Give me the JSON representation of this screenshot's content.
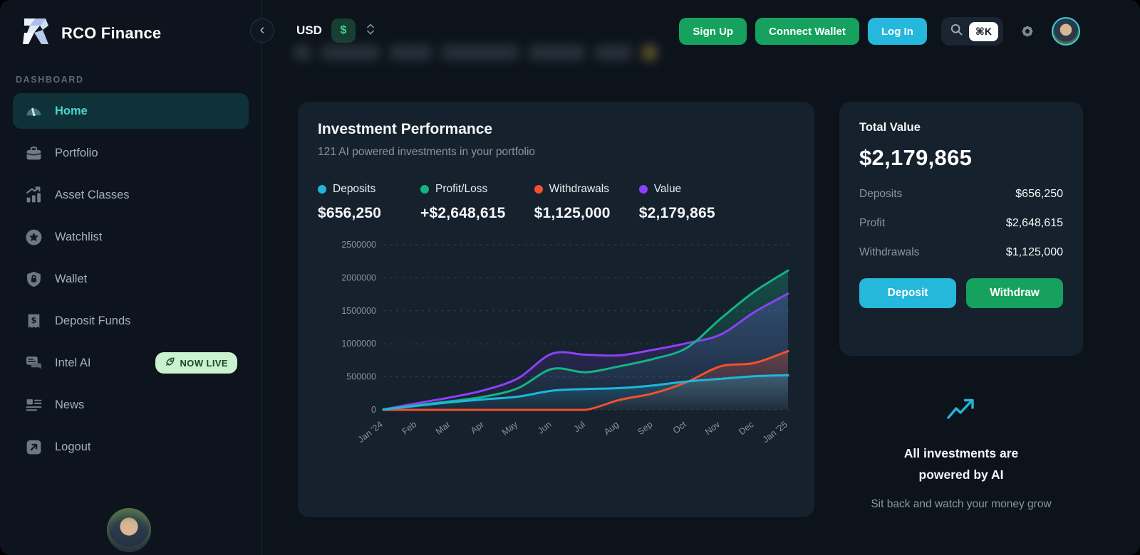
{
  "brand": {
    "name": "RCO Finance"
  },
  "sidebar": {
    "section_label": "DASHBOARD",
    "items": [
      {
        "label": "Home"
      },
      {
        "label": "Portfolio"
      },
      {
        "label": "Asset Classes"
      },
      {
        "label": "Watchlist"
      },
      {
        "label": "Wallet"
      },
      {
        "label": "Deposit Funds"
      },
      {
        "label": "Intel AI",
        "badge": "NOW LIVE"
      },
      {
        "label": "News"
      },
      {
        "label": "Logout"
      }
    ]
  },
  "topbar": {
    "currency": {
      "code": "USD",
      "symbol": "$"
    },
    "sign_up": "Sign Up",
    "connect_wallet": "Connect Wallet",
    "log_in": "Log In",
    "search_shortcut": "⌘K"
  },
  "performance_card": {
    "title": "Investment Performance",
    "subtitle": "121 AI powered investments in your portfolio",
    "legend": [
      {
        "label": "Deposits",
        "value": "$656,250",
        "color": "#1fb6dc"
      },
      {
        "label": "Profit/Loss",
        "value": "+$2,648,615",
        "color": "#15b382"
      },
      {
        "label": "Withdrawals",
        "value": "$1,125,000",
        "color": "#f4502e"
      },
      {
        "label": "Value",
        "value": "$2,179,865",
        "color": "#8b41f6"
      }
    ]
  },
  "chart_data": {
    "type": "line",
    "title": "Investment Performance",
    "x": [
      "Jan '24",
      "Feb",
      "Mar",
      "Apr",
      "May",
      "Jun",
      "Jul",
      "Aug",
      "Sep",
      "Oct",
      "Nov",
      "Dec",
      "Jan '25"
    ],
    "ylim": [
      0,
      2500000
    ],
    "yticks": [
      0,
      500000,
      1000000,
      1500000,
      2000000,
      2500000
    ],
    "grid": "dashed-horizontal",
    "legend_position": "top",
    "series": [
      {
        "name": "Deposits",
        "color": "#1fb6dc",
        "values": [
          5000,
          60000,
          115000,
          160000,
          200000,
          290000,
          315000,
          330000,
          370000,
          430000,
          470000,
          510000,
          525000
        ]
      },
      {
        "name": "Profit/Loss",
        "color": "#15b382",
        "values": [
          5000,
          70000,
          130000,
          200000,
          330000,
          620000,
          570000,
          660000,
          770000,
          940000,
          1380000,
          1790000,
          2110000
        ]
      },
      {
        "name": "Withdrawals",
        "color": "#f4502e",
        "values": [
          0,
          0,
          0,
          0,
          0,
          0,
          0,
          150000,
          250000,
          420000,
          660000,
          710000,
          890000
        ]
      },
      {
        "name": "Value",
        "color": "#8b41f6",
        "values": [
          5000,
          100000,
          190000,
          300000,
          480000,
          850000,
          835000,
          825000,
          910000,
          1010000,
          1140000,
          1480000,
          1760000
        ]
      }
    ]
  },
  "total_value_card": {
    "title": "Total Value",
    "amount": "$2,179,865",
    "rows": [
      {
        "label": "Deposits",
        "value": "$656,250"
      },
      {
        "label": "Profit",
        "value": "$2,648,615"
      },
      {
        "label": "Withdrawals",
        "value": "$1,125,000"
      }
    ],
    "deposit_button": "Deposit",
    "withdraw_button": "Withdraw"
  },
  "ai_note": {
    "title_line1": "All investments are",
    "title_line2": "powered by AI",
    "subtitle": "Sit back and watch your money grow"
  }
}
